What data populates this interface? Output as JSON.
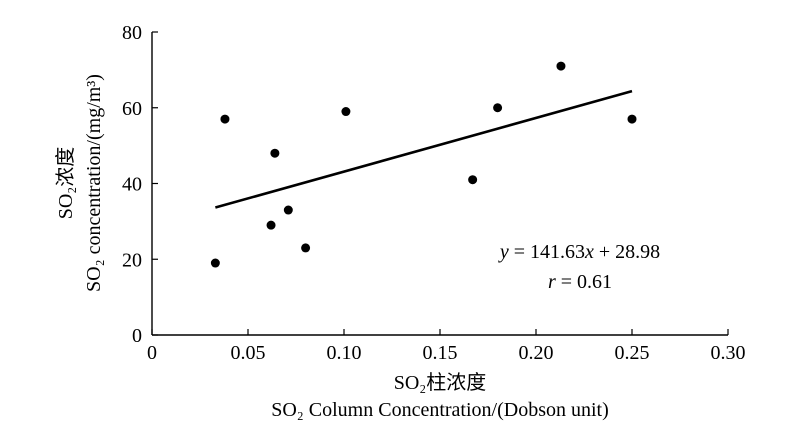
{
  "chart_data": {
    "type": "scatter",
    "title": "",
    "xlabel_cn": "SO₂柱浓度",
    "xlabel_en": "SO₂ Column Concentration/(Dobson unit)",
    "ylabel_cn": "SO₂浓度",
    "ylabel_en": "SO₂ concentration/(mg/m³)",
    "xlim": [
      0,
      0.3
    ],
    "ylim": [
      0,
      80
    ],
    "x_ticks": [
      "0",
      "0.05",
      "0.10",
      "0.15",
      "0.20",
      "0.25",
      "0.30"
    ],
    "y_ticks": [
      "0",
      "20",
      "40",
      "60",
      "80"
    ],
    "grid": false,
    "points": [
      {
        "x": 0.033,
        "y": 19
      },
      {
        "x": 0.038,
        "y": 57
      },
      {
        "x": 0.062,
        "y": 29
      },
      {
        "x": 0.064,
        "y": 48
      },
      {
        "x": 0.071,
        "y": 33
      },
      {
        "x": 0.08,
        "y": 23
      },
      {
        "x": 0.101,
        "y": 59
      },
      {
        "x": 0.167,
        "y": 41
      },
      {
        "x": 0.18,
        "y": 60
      },
      {
        "x": 0.213,
        "y": 71
      },
      {
        "x": 0.25,
        "y": 57
      }
    ],
    "trendline": {
      "slope": 141.63,
      "intercept": 28.98,
      "x_start": 0.033,
      "x_end": 0.25
    },
    "equation_text": "y = 141.63x + 28.98",
    "r_text": "r = 0.61"
  }
}
